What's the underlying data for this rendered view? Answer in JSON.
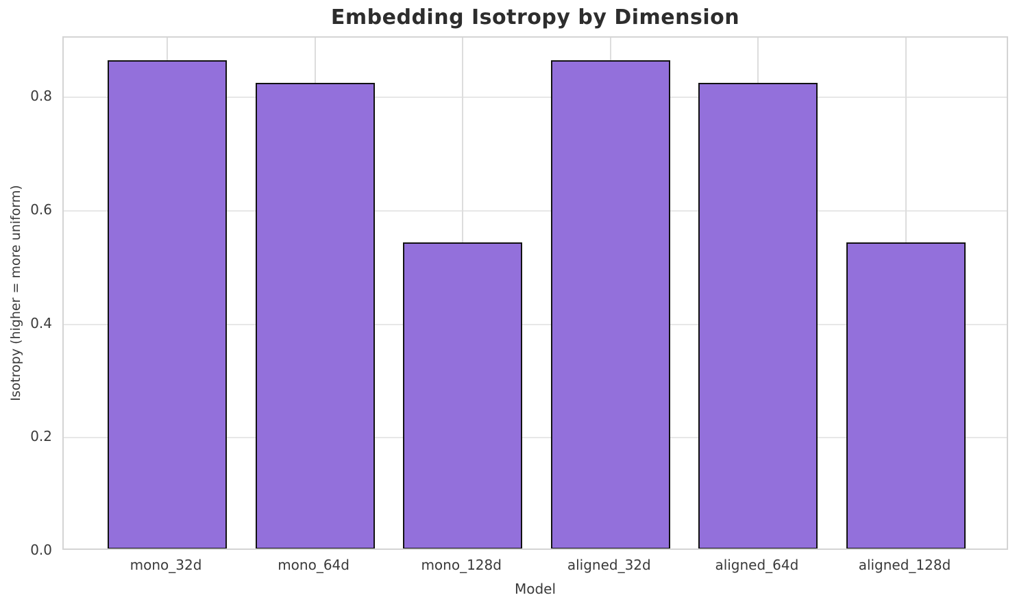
{
  "chart_data": {
    "type": "bar",
    "title": "Embedding Isotropy by Dimension",
    "xlabel": "Model",
    "ylabel": "Isotropy (higher = more uniform)",
    "categories": [
      "mono_32d",
      "mono_64d",
      "mono_128d",
      "aligned_32d",
      "aligned_64d",
      "aligned_128d"
    ],
    "values": [
      0.86,
      0.82,
      0.54,
      0.86,
      0.82,
      0.54
    ],
    "yticks": [
      0.0,
      0.2,
      0.4,
      0.6,
      0.8
    ],
    "ytick_labels": [
      "0.0",
      "0.2",
      "0.4",
      "0.6",
      "0.8"
    ],
    "ylim": [
      0.0,
      0.905
    ],
    "grid": true,
    "legend": null,
    "colors": {
      "bar_fill": "#9370DB",
      "bar_edge": "#111111",
      "grid_line": "#e2e2e2",
      "spine": "#d4d4d4",
      "title_text": "#2d2d2d",
      "tick_text": "#3a3a3a",
      "background": "#ffffff"
    }
  }
}
